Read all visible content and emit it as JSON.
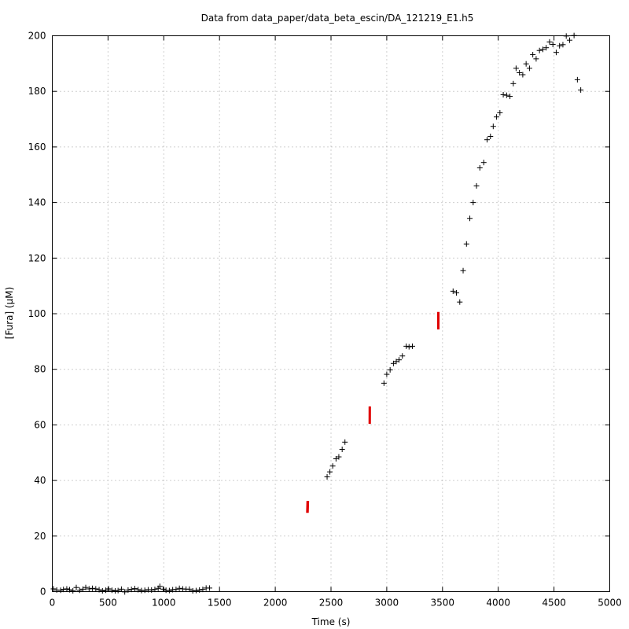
{
  "chart_data": {
    "type": "scatter",
    "title": "Data from data_paper/data_beta_escin/DA_121219_E1.h5",
    "xlabel": "Time (s)",
    "ylabel": "[Fura] (μM)",
    "xlim": [
      0,
      5000
    ],
    "ylim": [
      0,
      200
    ],
    "grid": true,
    "x_ticks": [
      0,
      500,
      1000,
      1500,
      2000,
      2500,
      3000,
      3500,
      4000,
      4500,
      5000
    ],
    "y_ticks": [
      0,
      20,
      40,
      60,
      80,
      100,
      120,
      140,
      160,
      180,
      200
    ],
    "series": [
      {
        "marker": "+",
        "color": "#000000",
        "points": [
          [
            10,
            1
          ],
          [
            40,
            0.6
          ],
          [
            75,
            0.5
          ],
          [
            100,
            0.8
          ],
          [
            130,
            1.0
          ],
          [
            155,
            0.7
          ],
          [
            185,
            0.3
          ],
          [
            215,
            1.5
          ],
          [
            245,
            0.5
          ],
          [
            275,
            0.9
          ],
          [
            300,
            1.5
          ],
          [
            330,
            1.0
          ],
          [
            360,
            1.2
          ],
          [
            390,
            1.0
          ],
          [
            420,
            0.7
          ],
          [
            450,
            0.3
          ],
          [
            480,
            0.5
          ],
          [
            505,
            1.0
          ],
          [
            535,
            0.5
          ],
          [
            565,
            0.3
          ],
          [
            590,
            0.4
          ],
          [
            620,
            0.9
          ],
          [
            650,
            -0.1
          ],
          [
            680,
            0.6
          ],
          [
            710,
            0.8
          ],
          [
            740,
            1.1
          ],
          [
            770,
            0.7
          ],
          [
            800,
            0.4
          ],
          [
            830,
            0.5
          ],
          [
            860,
            0.7
          ],
          [
            890,
            0.6
          ],
          [
            920,
            0.8
          ],
          [
            950,
            1.2
          ],
          [
            965,
            1.9
          ],
          [
            995,
            0.9
          ],
          [
            1020,
            0.5
          ],
          [
            1050,
            0.4
          ],
          [
            1080,
            0.7
          ],
          [
            1110,
            0.8
          ],
          [
            1140,
            1.2
          ],
          [
            1170,
            1.0
          ],
          [
            1200,
            0.9
          ],
          [
            1230,
            0.9
          ],
          [
            1260,
            0.3
          ],
          [
            1290,
            0.4
          ],
          [
            1320,
            0.6
          ],
          [
            1350,
            0.8
          ],
          [
            1380,
            1.3
          ],
          [
            1410,
            1.3
          ],
          [
            2465,
            41.3
          ],
          [
            2490,
            43.1
          ],
          [
            2515,
            45.2
          ],
          [
            2545,
            47.8
          ],
          [
            2570,
            48.5
          ],
          [
            2600,
            51.2
          ],
          [
            2625,
            53.8
          ],
          [
            2975,
            75.0
          ],
          [
            3000,
            78.2
          ],
          [
            3030,
            79.8
          ],
          [
            3060,
            82.1
          ],
          [
            3085,
            82.8
          ],
          [
            3110,
            83.4
          ],
          [
            3140,
            84.8
          ],
          [
            3175,
            88.3
          ],
          [
            3200,
            88.1
          ],
          [
            3230,
            88.3
          ],
          [
            3595,
            108.1
          ],
          [
            3625,
            107.5
          ],
          [
            3655,
            104.2
          ],
          [
            3685,
            115.5
          ],
          [
            3715,
            125.1
          ],
          [
            3745,
            134.3
          ],
          [
            3775,
            140.0
          ],
          [
            3805,
            146.0
          ],
          [
            3835,
            152.5
          ],
          [
            3870,
            154.4
          ],
          [
            3900,
            162.6
          ],
          [
            3930,
            163.8
          ],
          [
            3955,
            167.4
          ],
          [
            3985,
            170.8
          ],
          [
            4015,
            172.3
          ],
          [
            4045,
            178.8
          ],
          [
            4075,
            178.6
          ],
          [
            4105,
            178.2
          ],
          [
            4135,
            182.8
          ],
          [
            4160,
            188.3
          ],
          [
            4190,
            186.7
          ],
          [
            4220,
            186.0
          ],
          [
            4250,
            189.9
          ],
          [
            4280,
            188.3
          ],
          [
            4310,
            193.2
          ],
          [
            4340,
            191.7
          ],
          [
            4370,
            194.7
          ],
          [
            4400,
            195.1
          ],
          [
            4430,
            195.7
          ],
          [
            4460,
            197.8
          ],
          [
            4490,
            196.9
          ],
          [
            4520,
            194.0
          ],
          [
            4550,
            196.4
          ],
          [
            4580,
            196.8
          ],
          [
            4610,
            199.9
          ],
          [
            4640,
            198.4
          ],
          [
            4680,
            200.1
          ],
          [
            4710,
            184.2
          ],
          [
            4740,
            180.5
          ]
        ]
      },
      {
        "marker": "segment",
        "color": "#e00000",
        "segments": [
          {
            "x": [
              2280,
              2300
            ],
            "y": [
              28.5,
              32.5
            ]
          },
          {
            "x": [
              2840,
              2855
            ],
            "y": [
              60.5,
              66.5
            ]
          },
          {
            "x": [
              3455,
              3470
            ],
            "y": [
              94.5,
              100.5
            ]
          }
        ]
      }
    ]
  }
}
